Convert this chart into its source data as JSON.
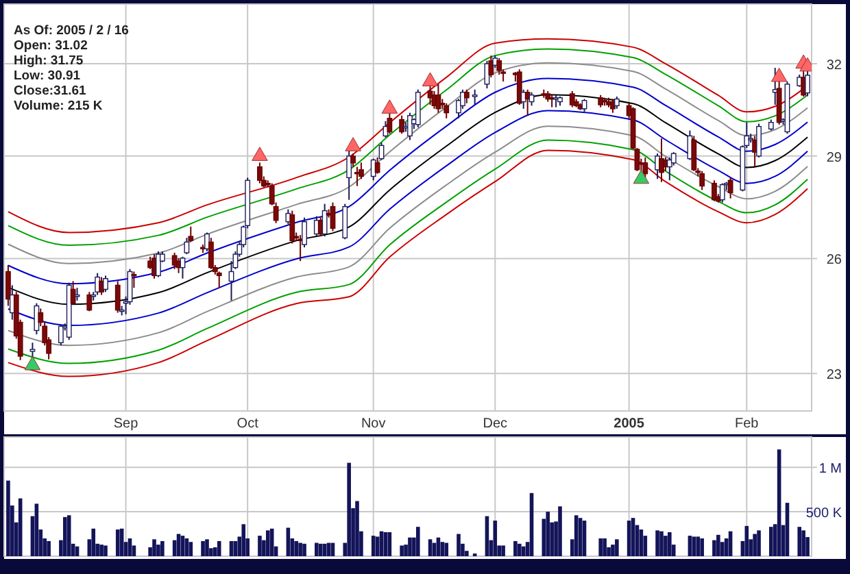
{
  "chart_data": [
    {
      "type": "candlestick",
      "log": "y",
      "grid": true,
      "annotations": [
        "As Of: 2005 / 2 / 16",
        "Open: 31.02",
        "High: 31.75",
        "Low: 30.91",
        "Close:31.61",
        "Volume: 215 K"
      ],
      "xlim": [
        "2004-08-02",
        "2005-02-17"
      ],
      "xticks": [
        {
          "value": "2004-09-01",
          "label": "Sep"
        },
        {
          "value": "2004-10-01",
          "label": "Oct"
        },
        {
          "value": "2004-11-01",
          "label": "Nov"
        },
        {
          "value": "2004-12-01",
          "label": "Dec"
        },
        {
          "value": "2005-01-03",
          "label": "2005"
        },
        {
          "value": "2005-02-01",
          "label": "Feb"
        }
      ],
      "ylim": [
        22.1,
        34.1
      ],
      "yticks": [
        23,
        26,
        29,
        32
      ],
      "x": [
        "2004-08-03",
        "2004-08-04",
        "2004-08-05",
        "2004-08-06",
        "2004-08-09",
        "2004-08-10",
        "2004-08-11",
        "2004-08-12",
        "2004-08-13",
        "2004-08-16",
        "2004-08-17",
        "2004-08-18",
        "2004-08-19",
        "2004-08-20",
        "2004-08-23",
        "2004-08-24",
        "2004-08-25",
        "2004-08-26",
        "2004-08-27",
        "2004-08-30",
        "2004-08-31",
        "2004-09-01",
        "2004-09-02",
        "2004-09-03",
        "2004-09-07",
        "2004-09-08",
        "2004-09-09",
        "2004-09-10",
        "2004-09-13",
        "2004-09-14",
        "2004-09-15",
        "2004-09-16",
        "2004-09-17",
        "2004-09-20",
        "2004-09-21",
        "2004-09-22",
        "2004-09-23",
        "2004-09-24",
        "2004-09-27",
        "2004-09-28",
        "2004-09-29",
        "2004-09-30",
        "2004-10-01",
        "2004-10-04",
        "2004-10-05",
        "2004-10-06",
        "2004-10-07",
        "2004-10-08",
        "2004-10-11",
        "2004-10-12",
        "2004-10-13",
        "2004-10-14",
        "2004-10-15",
        "2004-10-18",
        "2004-10-19",
        "2004-10-20",
        "2004-10-21",
        "2004-10-22",
        "2004-10-25",
        "2004-10-26",
        "2004-10-27",
        "2004-10-28",
        "2004-10-29",
        "2004-11-01",
        "2004-11-02",
        "2004-11-03",
        "2004-11-04",
        "2004-11-05",
        "2004-11-08",
        "2004-11-09",
        "2004-11-10",
        "2004-11-11",
        "2004-11-12",
        "2004-11-15",
        "2004-11-16",
        "2004-11-17",
        "2004-11-18",
        "2004-11-19",
        "2004-11-22",
        "2004-11-23",
        "2004-11-24",
        "2004-11-26",
        "2004-11-29",
        "2004-11-30",
        "2004-12-01",
        "2004-12-02",
        "2004-12-03",
        "2004-12-06",
        "2004-12-07",
        "2004-12-08",
        "2004-12-09",
        "2004-12-10",
        "2004-12-13",
        "2004-12-14",
        "2004-12-15",
        "2004-12-16",
        "2004-12-17",
        "2004-12-20",
        "2004-12-21",
        "2004-12-22",
        "2004-12-23",
        "2004-12-27",
        "2004-12-28",
        "2004-12-29",
        "2004-12-30",
        "2004-12-31",
        "2005-01-03",
        "2005-01-04",
        "2005-01-05",
        "2005-01-06",
        "2005-01-07",
        "2005-01-10",
        "2005-01-11",
        "2005-01-12",
        "2005-01-13",
        "2005-01-14",
        "2005-01-18",
        "2005-01-19",
        "2005-01-20",
        "2005-01-21",
        "2005-01-24",
        "2005-01-25",
        "2005-01-26",
        "2005-01-27",
        "2005-01-28",
        "2005-01-31",
        "2005-02-01",
        "2005-02-02",
        "2005-02-03",
        "2005-02-04",
        "2005-02-07",
        "2005-02-08",
        "2005-02-09",
        "2005-02-10",
        "2005-02-11",
        "2005-02-14",
        "2005-02-15",
        "2005-02-16"
      ],
      "ohlc": [
        [
          25.64,
          25.82,
          24.72,
          24.9
        ],
        [
          24.54,
          25.27,
          24.36,
          25.01
        ],
        [
          25.01,
          25.09,
          23.87,
          23.94
        ],
        [
          24.29,
          24.36,
          23.33,
          23.43
        ],
        [
          23.55,
          23.77,
          23.4,
          23.6
        ],
        [
          24.08,
          24.79,
          23.98,
          24.72
        ],
        [
          24.54,
          24.65,
          24.19,
          24.29
        ],
        [
          24.19,
          24.29,
          23.7,
          23.77
        ],
        [
          23.84,
          23.91,
          23.35,
          23.5
        ],
        [
          23.77,
          24.22,
          23.7,
          24.19
        ],
        [
          24.15,
          24.26,
          24.08,
          24.19
        ],
        [
          23.91,
          25.34,
          23.84,
          25.27
        ],
        [
          25.16,
          25.38,
          24.75,
          24.79
        ],
        [
          24.97,
          25.2,
          24.86,
          25.01
        ],
        [
          25.01,
          25.09,
          24.58,
          24.61
        ],
        [
          24.97,
          25.09,
          24.86,
          25.01
        ],
        [
          25.09,
          25.6,
          25.01,
          25.49
        ],
        [
          25.38,
          25.49,
          25.01,
          25.09
        ],
        [
          25.16,
          25.53,
          25.09,
          25.45
        ],
        [
          25.27,
          25.38,
          24.54,
          24.61
        ],
        [
          24.58,
          24.72,
          24.47,
          24.61
        ],
        [
          24.79,
          24.97,
          24.5,
          24.83
        ],
        [
          24.83,
          25.71,
          24.75,
          25.64
        ],
        [
          25.56,
          25.64,
          25.2,
          25.53
        ],
        [
          25.93,
          26.05,
          25.71,
          25.75
        ],
        [
          26.01,
          26.12,
          25.45,
          25.53
        ],
        [
          25.53,
          26.2,
          25.49,
          26.12
        ],
        [
          25.93,
          26.2,
          25.9,
          26.12
        ],
        [
          26.08,
          26.16,
          25.71,
          25.82
        ],
        [
          25.93,
          26.01,
          25.6,
          25.75
        ],
        [
          25.75,
          26.05,
          25.45,
          26.01
        ],
        [
          26.16,
          26.58,
          26.12,
          26.46
        ],
        [
          26.62,
          26.9,
          26.46,
          26.5
        ],
        [
          26.31,
          26.39,
          26.16,
          26.27
        ],
        [
          26.27,
          26.73,
          26.2,
          26.69
        ],
        [
          26.46,
          26.58,
          25.71,
          25.75
        ],
        [
          25.75,
          25.82,
          25.56,
          25.64
        ],
        [
          25.6,
          25.64,
          25.2,
          25.53
        ],
        [
          25.38,
          25.93,
          24.86,
          25.64
        ],
        [
          25.75,
          26.2,
          25.71,
          26.12
        ],
        [
          26.12,
          26.46,
          26.05,
          26.39
        ],
        [
          26.39,
          26.93,
          26.31,
          26.89
        ],
        [
          26.93,
          28.34,
          26.85,
          28.26
        ],
        [
          28.67,
          28.8,
          28.17,
          28.26
        ],
        [
          28.26,
          28.38,
          28.05,
          28.09
        ],
        [
          28.17,
          28.26,
          28.05,
          28.13
        ],
        [
          28.09,
          28.17,
          27.52,
          27.56
        ],
        [
          27.48,
          27.6,
          27.0,
          27.08
        ],
        [
          27.04,
          27.4,
          26.97,
          27.28
        ],
        [
          27.24,
          27.36,
          26.42,
          26.5
        ],
        [
          26.62,
          26.73,
          26.5,
          26.58
        ],
        [
          26.54,
          26.66,
          25.93,
          26.5
        ],
        [
          26.39,
          27.16,
          26.31,
          27.04
        ],
        [
          26.69,
          27.2,
          26.62,
          27.08
        ],
        [
          27.08,
          27.16,
          26.62,
          26.69
        ],
        [
          26.69,
          27.56,
          26.62,
          27.36
        ],
        [
          27.28,
          27.4,
          27.16,
          27.24
        ],
        [
          27.48,
          27.6,
          26.77,
          26.85
        ],
        [
          26.58,
          27.56,
          26.54,
          27.48
        ],
        [
          28.34,
          29.25,
          27.68,
          29.0
        ],
        [
          29.0,
          29.08,
          28.67,
          28.79
        ],
        [
          28.5,
          28.67,
          28.09,
          28.46
        ],
        [
          28.58,
          28.8,
          28.3,
          28.38
        ],
        [
          28.38,
          28.92,
          28.26,
          28.88
        ],
        [
          28.79,
          28.96,
          28.46,
          28.5
        ],
        [
          28.92,
          29.42,
          28.88,
          29.33
        ],
        [
          29.63,
          30.1,
          29.58,
          29.93
        ],
        [
          30.19,
          30.37,
          29.7,
          29.76
        ],
        [
          30.15,
          30.28,
          29.7,
          29.76
        ],
        [
          29.9,
          30.06,
          29.76,
          29.93
        ],
        [
          29.63,
          30.37,
          29.5,
          30.28
        ],
        [
          30.02,
          30.19,
          29.85,
          30.15
        ],
        [
          29.99,
          31.13,
          29.9,
          31.04
        ],
        [
          31.08,
          31.26,
          30.63,
          30.86
        ],
        [
          30.95,
          31.08,
          30.5,
          30.6
        ],
        [
          30.95,
          31.31,
          30.37,
          30.5
        ],
        [
          30.68,
          30.82,
          30.5,
          30.63
        ],
        [
          30.6,
          30.68,
          30.19,
          30.37
        ],
        [
          30.37,
          30.82,
          30.19,
          30.77
        ],
        [
          30.6,
          31.13,
          30.5,
          31.04
        ],
        [
          31.04,
          31.13,
          30.68,
          30.86
        ],
        [
          30.9,
          31.13,
          30.63,
          30.95
        ],
        [
          31.31,
          32.1,
          31.17,
          32.0
        ],
        [
          32.1,
          32.28,
          31.54,
          31.63
        ],
        [
          31.95,
          32.28,
          31.86,
          32.19
        ],
        [
          32.1,
          32.19,
          31.63,
          31.77
        ],
        [
          31.72,
          31.81,
          31.4,
          31.68
        ],
        [
          31.68,
          31.72,
          31.4,
          31.63
        ],
        [
          31.72,
          31.81,
          30.63,
          30.68
        ],
        [
          30.73,
          31.13,
          30.5,
          31.04
        ],
        [
          31.04,
          31.13,
          30.28,
          30.82
        ],
        [
          30.73,
          31.04,
          30.6,
          30.95
        ],
        [
          30.99,
          31.13,
          30.86,
          30.95
        ],
        [
          30.99,
          31.08,
          30.73,
          30.82
        ],
        [
          30.86,
          30.95,
          30.55,
          30.82
        ],
        [
          30.82,
          30.95,
          30.55,
          30.86
        ],
        [
          30.73,
          30.9,
          30.6,
          30.86
        ],
        [
          30.99,
          31.08,
          30.55,
          30.63
        ],
        [
          30.73,
          30.82,
          30.55,
          30.6
        ],
        [
          30.63,
          30.68,
          30.46,
          30.5
        ],
        [
          30.5,
          30.82,
          30.41,
          30.77
        ],
        [
          30.86,
          30.95,
          30.55,
          30.63
        ],
        [
          30.77,
          30.86,
          30.6,
          30.73
        ],
        [
          30.73,
          30.86,
          30.55,
          30.63
        ],
        [
          30.73,
          30.82,
          30.37,
          30.5
        ],
        [
          30.6,
          30.9,
          30.5,
          30.82
        ],
        [
          30.6,
          30.68,
          30.19,
          30.28
        ],
        [
          30.5,
          30.55,
          29.21,
          29.25
        ],
        [
          29.21,
          29.25,
          28.54,
          28.58
        ],
        [
          28.79,
          28.92,
          28.46,
          28.75
        ],
        [
          28.79,
          28.96,
          28.34,
          28.46
        ],
        [
          28.58,
          29.08,
          28.3,
          29.0
        ],
        [
          28.92,
          29.55,
          28.21,
          28.5
        ],
        [
          28.88,
          28.96,
          28.54,
          28.67
        ],
        [
          28.67,
          28.96,
          28.26,
          28.88
        ],
        [
          28.79,
          29.12,
          28.71,
          29.08
        ],
        [
          28.92,
          29.8,
          28.88,
          29.63
        ],
        [
          29.5,
          29.63,
          28.54,
          28.58
        ],
        [
          28.54,
          28.63,
          28.38,
          28.5
        ],
        [
          28.46,
          28.54,
          27.97,
          28.09
        ],
        [
          28.17,
          28.26,
          27.64,
          27.68
        ],
        [
          27.77,
          27.85,
          27.6,
          27.64
        ],
        [
          27.68,
          28.17,
          27.6,
          28.13
        ],
        [
          28.13,
          28.21,
          27.97,
          28.17
        ],
        [
          28.26,
          28.34,
          27.72,
          27.89
        ],
        [
          27.97,
          29.33,
          27.93,
          29.29
        ],
        [
          29.33,
          30.06,
          29.25,
          29.63
        ],
        [
          29.55,
          29.7,
          29.42,
          29.55
        ],
        [
          29.5,
          29.63,
          28.67,
          29.12
        ],
        [
          29.0,
          30.02,
          28.96,
          29.93
        ],
        [
          29.85,
          30.15,
          29.8,
          30.06
        ],
        [
          31.04,
          31.86,
          30.63,
          31.13
        ],
        [
          31.17,
          31.4,
          29.99,
          30.06
        ],
        [
          30.1,
          30.19,
          29.99,
          30.15
        ],
        [
          29.76,
          31.4,
          29.7,
          31.31
        ],
        [
          31.26,
          31.63,
          31.22,
          31.54
        ],
        [
          31.54,
          31.86,
          30.9,
          30.95
        ],
        [
          31.02,
          31.75,
          30.91,
          31.61
        ]
      ],
      "series": [
        {
          "type": "line",
          "color": "#cc0000",
          "x": [
            "2004-08-03",
            "2004-08-18",
            "2004-09-09",
            "2004-09-21",
            "2004-10-13",
            "2004-10-26",
            "2004-11-05",
            "2004-11-19",
            "2004-12-01",
            "2004-12-14",
            "2005-01-04",
            "2005-01-12",
            "2005-01-25",
            "2005-02-01",
            "2005-02-08",
            "2005-02-16"
          ],
          "values": [
            27.33,
            26.73,
            27.01,
            27.53,
            28.34,
            28.97,
            30.05,
            31.54,
            32.71,
            32.86,
            32.57,
            32.0,
            30.94,
            30.4,
            30.58,
            31.26
          ]
        },
        {
          "type": "line",
          "color": "#00a000",
          "x": [
            "2004-08-03",
            "2004-08-18",
            "2004-09-09",
            "2004-09-21",
            "2004-10-13",
            "2004-10-26",
            "2004-11-05",
            "2004-11-19",
            "2004-12-01",
            "2004-12-14",
            "2005-01-04",
            "2005-01-12",
            "2005-01-25",
            "2005-02-01",
            "2005-02-08",
            "2005-02-16"
          ],
          "values": [
            26.93,
            26.37,
            26.65,
            27.17,
            28.0,
            28.58,
            29.66,
            31.12,
            32.28,
            32.51,
            32.21,
            31.64,
            30.6,
            30.08,
            30.27,
            30.95
          ]
        },
        {
          "type": "line",
          "color": "#8c8c8c",
          "x": [
            "2004-08-03",
            "2004-08-18",
            "2004-09-09",
            "2004-09-21",
            "2004-10-13",
            "2004-10-26",
            "2004-11-05",
            "2004-11-19",
            "2004-12-01",
            "2004-12-14",
            "2005-01-04",
            "2005-01-12",
            "2005-01-25",
            "2005-02-01",
            "2005-02-08",
            "2005-02-16"
          ],
          "values": [
            26.4,
            25.86,
            26.15,
            26.68,
            27.54,
            28.06,
            29.13,
            30.56,
            31.69,
            32.03,
            31.74,
            31.15,
            30.12,
            29.64,
            29.83,
            30.53
          ]
        },
        {
          "type": "line",
          "color": "#0000cc",
          "x": [
            "2004-08-03",
            "2004-08-18",
            "2004-09-09",
            "2004-09-21",
            "2004-10-13",
            "2004-10-26",
            "2004-11-05",
            "2004-11-19",
            "2004-12-01",
            "2004-12-14",
            "2005-01-04",
            "2005-01-12",
            "2005-01-25",
            "2005-02-01",
            "2005-02-08",
            "2005-02-16"
          ],
          "values": [
            25.81,
            25.31,
            25.62,
            26.15,
            27.02,
            27.48,
            28.56,
            29.94,
            31.04,
            31.5,
            31.21,
            30.61,
            29.6,
            29.15,
            29.36,
            30.07
          ]
        },
        {
          "type": "line",
          "color": "#000000",
          "x": [
            "2004-08-03",
            "2004-08-18",
            "2004-09-09",
            "2004-09-21",
            "2004-10-13",
            "2004-10-26",
            "2004-11-05",
            "2004-11-19",
            "2004-12-01",
            "2004-12-14",
            "2005-01-04",
            "2005-01-12",
            "2005-01-25",
            "2005-02-01",
            "2005-02-08",
            "2005-02-16"
          ],
          "values": [
            25.21,
            24.76,
            25.07,
            25.61,
            26.5,
            26.89,
            27.97,
            29.31,
            30.38,
            30.96,
            30.67,
            30.05,
            29.07,
            28.65,
            28.86,
            29.59
          ]
        },
        {
          "type": "line",
          "color": "#0000cc",
          "x": [
            "2004-08-03",
            "2004-08-18",
            "2004-09-09",
            "2004-09-21",
            "2004-10-13",
            "2004-10-26",
            "2004-11-05",
            "2004-11-19",
            "2004-12-01",
            "2004-12-14",
            "2005-01-04",
            "2005-01-12",
            "2005-01-25",
            "2005-02-01",
            "2005-02-08",
            "2005-02-16"
          ],
          "values": [
            24.64,
            24.21,
            24.53,
            25.07,
            25.99,
            26.32,
            27.4,
            28.7,
            29.74,
            30.44,
            30.14,
            29.51,
            28.56,
            28.17,
            28.38,
            29.15
          ]
        },
        {
          "type": "line",
          "color": "#8c8c8c",
          "x": [
            "2004-08-03",
            "2004-08-18",
            "2004-09-09",
            "2004-09-21",
            "2004-10-13",
            "2004-10-26",
            "2004-11-05",
            "2004-11-19",
            "2004-12-01",
            "2004-12-14",
            "2005-01-04",
            "2005-01-12",
            "2005-01-25",
            "2005-02-01",
            "2005-02-08",
            "2005-02-16"
          ],
          "values": [
            24.08,
            23.7,
            24.02,
            24.57,
            25.49,
            25.77,
            26.85,
            28.12,
            29.12,
            29.94,
            29.64,
            28.99,
            28.07,
            27.71,
            27.93,
            28.68
          ]
        },
        {
          "type": "line",
          "color": "#00a000",
          "x": [
            "2004-08-03",
            "2004-08-18",
            "2004-09-09",
            "2004-09-21",
            "2004-10-13",
            "2004-10-26",
            "2004-11-05",
            "2004-11-19",
            "2004-12-01",
            "2004-12-14",
            "2005-01-04",
            "2005-01-12",
            "2005-01-25",
            "2005-02-01",
            "2005-02-08",
            "2005-02-16"
          ],
          "values": [
            23.61,
            23.25,
            23.58,
            24.13,
            25.08,
            25.29,
            26.38,
            27.61,
            28.6,
            29.5,
            29.2,
            28.54,
            27.63,
            27.3,
            27.53,
            28.29
          ]
        },
        {
          "type": "line",
          "color": "#cc0000",
          "x": [
            "2004-08-03",
            "2004-08-18",
            "2004-09-09",
            "2004-09-21",
            "2004-10-13",
            "2004-10-26",
            "2004-11-05",
            "2004-11-19",
            "2004-12-01",
            "2004-12-14",
            "2005-01-04",
            "2005-01-12",
            "2005-01-25",
            "2005-02-01",
            "2005-02-08",
            "2005-02-16"
          ],
          "values": [
            23.27,
            22.93,
            23.27,
            23.82,
            24.78,
            24.96,
            26.04,
            27.25,
            28.22,
            29.18,
            28.89,
            28.22,
            27.33,
            27.01,
            27.25,
            28.01
          ]
        },
        {
          "type": "scatter",
          "marker": "triangle",
          "color": "#33cc66",
          "x": [
            "2004-08-09",
            "2005-01-06"
          ],
          "values": [
            23.2,
            28.3
          ]
        },
        {
          "type": "scatter",
          "marker": "triangle",
          "color": "#ff6666",
          "x": [
            "2004-10-04",
            "2004-10-27",
            "2004-11-05",
            "2004-11-15",
            "2005-02-09",
            "2005-02-15",
            "2005-02-16"
          ],
          "values": [
            29.0,
            29.3,
            30.5,
            31.4,
            31.55,
            32.0,
            31.9
          ]
        }
      ]
    },
    {
      "type": "bar",
      "grid": true,
      "tick_labels": "y",
      "color": "#14145a",
      "xlim": [
        "2004-08-02",
        "2005-02-17"
      ],
      "xticks": [
        {
          "value": "2004-09-01",
          "label": null
        },
        {
          "value": "2004-10-01",
          "label": null
        },
        {
          "value": "2004-11-01",
          "label": null
        },
        {
          "value": "2004-12-01",
          "label": null
        },
        {
          "value": "2005-01-03",
          "label": null
        },
        {
          "value": "2005-02-01",
          "label": null
        }
      ],
      "ylim": [
        0,
        1340000
      ],
      "yticks": [
        {
          "value": 500000,
          "label": "500 K"
        },
        {
          "value": 1000000,
          "label": "1 M"
        }
      ],
      "x": [
        "2004-08-03",
        "2004-08-04",
        "2004-08-05",
        "2004-08-06",
        "2004-08-09",
        "2004-08-10",
        "2004-08-11",
        "2004-08-12",
        "2004-08-13",
        "2004-08-16",
        "2004-08-17",
        "2004-08-18",
        "2004-08-19",
        "2004-08-20",
        "2004-08-23",
        "2004-08-24",
        "2004-08-25",
        "2004-08-26",
        "2004-08-27",
        "2004-08-30",
        "2004-08-31",
        "2004-09-01",
        "2004-09-02",
        "2004-09-03",
        "2004-09-07",
        "2004-09-08",
        "2004-09-09",
        "2004-09-10",
        "2004-09-13",
        "2004-09-14",
        "2004-09-15",
        "2004-09-16",
        "2004-09-17",
        "2004-09-20",
        "2004-09-21",
        "2004-09-22",
        "2004-09-23",
        "2004-09-24",
        "2004-09-27",
        "2004-09-28",
        "2004-09-29",
        "2004-09-30",
        "2004-10-01",
        "2004-10-04",
        "2004-10-05",
        "2004-10-06",
        "2004-10-07",
        "2004-10-08",
        "2004-10-11",
        "2004-10-12",
        "2004-10-13",
        "2004-10-14",
        "2004-10-15",
        "2004-10-18",
        "2004-10-19",
        "2004-10-20",
        "2004-10-21",
        "2004-10-22",
        "2004-10-25",
        "2004-10-26",
        "2004-10-27",
        "2004-10-28",
        "2004-10-29",
        "2004-11-01",
        "2004-11-02",
        "2004-11-03",
        "2004-11-04",
        "2004-11-05",
        "2004-11-08",
        "2004-11-09",
        "2004-11-10",
        "2004-11-11",
        "2004-11-12",
        "2004-11-15",
        "2004-11-16",
        "2004-11-17",
        "2004-11-18",
        "2004-11-19",
        "2004-11-22",
        "2004-11-23",
        "2004-11-24",
        "2004-11-26",
        "2004-11-29",
        "2004-11-30",
        "2004-12-01",
        "2004-12-02",
        "2004-12-03",
        "2004-12-06",
        "2004-12-07",
        "2004-12-08",
        "2004-12-09",
        "2004-12-10",
        "2004-12-13",
        "2004-12-14",
        "2004-12-15",
        "2004-12-16",
        "2004-12-17",
        "2004-12-20",
        "2004-12-21",
        "2004-12-22",
        "2004-12-23",
        "2004-12-27",
        "2004-12-28",
        "2004-12-29",
        "2004-12-30",
        "2004-12-31",
        "2005-01-03",
        "2005-01-04",
        "2005-01-05",
        "2005-01-06",
        "2005-01-07",
        "2005-01-10",
        "2005-01-11",
        "2005-01-12",
        "2005-01-13",
        "2005-01-14",
        "2005-01-18",
        "2005-01-19",
        "2005-01-20",
        "2005-01-21",
        "2005-01-24",
        "2005-01-25",
        "2005-01-26",
        "2005-01-27",
        "2005-01-28",
        "2005-01-31",
        "2005-02-01",
        "2005-02-02",
        "2005-02-03",
        "2005-02-04",
        "2005-02-07",
        "2005-02-08",
        "2005-02-09",
        "2005-02-10",
        "2005-02-11",
        "2005-02-14",
        "2005-02-15",
        "2005-02-16"
      ],
      "values": [
        850000,
        570000,
        380000,
        650000,
        450000,
        590000,
        300000,
        200000,
        170000,
        180000,
        440000,
        460000,
        140000,
        110000,
        190000,
        310000,
        140000,
        130000,
        120000,
        300000,
        310000,
        160000,
        200000,
        120000,
        100000,
        190000,
        130000,
        170000,
        180000,
        250000,
        230000,
        200000,
        160000,
        170000,
        190000,
        90000,
        100000,
        170000,
        170000,
        170000,
        220000,
        360000,
        200000,
        230000,
        180000,
        290000,
        310000,
        110000,
        320000,
        200000,
        170000,
        150000,
        140000,
        150000,
        140000,
        140000,
        150000,
        150000,
        150000,
        1050000,
        540000,
        620000,
        280000,
        230000,
        220000,
        280000,
        270000,
        270000,
        120000,
        130000,
        210000,
        210000,
        330000,
        190000,
        150000,
        210000,
        160000,
        150000,
        250000,
        140000,
        60000,
        30000,
        450000,
        180000,
        400000,
        120000,
        120000,
        170000,
        140000,
        110000,
        160000,
        710000,
        420000,
        500000,
        380000,
        390000,
        560000,
        190000,
        460000,
        430000,
        400000,
        200000,
        200000,
        100000,
        130000,
        190000,
        400000,
        430000,
        350000,
        300000,
        230000,
        290000,
        280000,
        230000,
        270000,
        130000,
        230000,
        220000,
        220000,
        200000,
        180000,
        240000,
        160000,
        200000,
        280000,
        170000,
        340000,
        190000,
        250000,
        290000,
        330000,
        360000,
        1200000,
        350000,
        600000,
        330000,
        290000,
        215000
      ]
    }
  ]
}
